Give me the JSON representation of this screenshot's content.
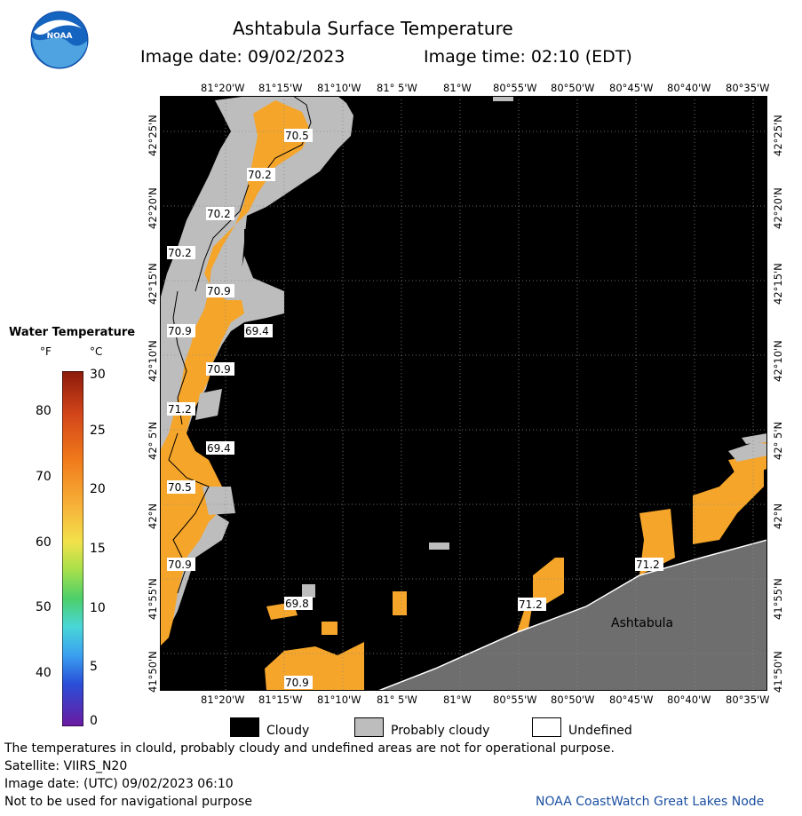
{
  "header": {
    "title": "Ashtabula Surface Temperature",
    "image_date_label": "Image date: 09/02/2023",
    "image_time_label": "Image time: 02:10 (EDT)",
    "logo_text": "NOAA"
  },
  "axes": {
    "lon_labels": [
      "81°20'W",
      "81°15'W",
      "81°10'W",
      "81° 5'W",
      "81°W",
      "80°55'W",
      "80°50'W",
      "80°45'W",
      "80°40'W",
      "80°35'W"
    ],
    "bottom_lon_labels": [
      "81°20'W",
      "81°15'W",
      "81°10'W",
      "81° 5'W",
      "81°W",
      "80°55'W",
      "80°50'W",
      "80°45'W",
      "80°40'W",
      "80°35'W"
    ],
    "lat_labels": [
      "42°25'N",
      "42°20'N",
      "42°15'N",
      "42°10'N",
      "42° 5'N",
      "42°N",
      "41°55'N",
      "41°50'N"
    ]
  },
  "map": {
    "place_label": "Ashtabula",
    "temperature_labels": [
      {
        "text": "70.5"
      },
      {
        "text": "70.2"
      },
      {
        "text": "70.2"
      },
      {
        "text": "70.2"
      },
      {
        "text": "70.9"
      },
      {
        "text": "70.9"
      },
      {
        "text": "69.4"
      },
      {
        "text": "70.9"
      },
      {
        "text": "71.2"
      },
      {
        "text": "69.4"
      },
      {
        "text": "70.5"
      },
      {
        "text": "70.9"
      },
      {
        "text": "69.8"
      },
      {
        "text": "70.9"
      },
      {
        "text": "71.2"
      },
      {
        "text": "71.2"
      }
    ]
  },
  "colorbar": {
    "title": "Water Temperature",
    "unit_f": "°F",
    "unit_c": "°C",
    "f_ticks": [
      "80",
      "70",
      "60",
      "50",
      "40"
    ],
    "c_ticks": [
      "30",
      "25",
      "20",
      "15",
      "10",
      "5",
      "0"
    ]
  },
  "legend": {
    "items": [
      {
        "label": "Cloudy",
        "color": "#000000"
      },
      {
        "label": "Probably cloudy",
        "color": "#bdbdbd"
      },
      {
        "label": "Undefined",
        "color": "#ffffff"
      }
    ]
  },
  "footer": {
    "line1": "The temperatures in clould, probably cloudy and undefined areas are not for operational purpose.",
    "line2": "Satellite: VIIRS_N20",
    "line3": "Image date: (UTC) 09/02/2023  06:10",
    "line4": "Not to be used for navigational purpose",
    "credit": "NOAA CoastWatch Great Lakes Node"
  },
  "colors": {
    "water_warm": "#f5a52a",
    "cloud": "#000000",
    "probably_cloudy": "#bdbdbd",
    "land": "#6e6e6e"
  }
}
